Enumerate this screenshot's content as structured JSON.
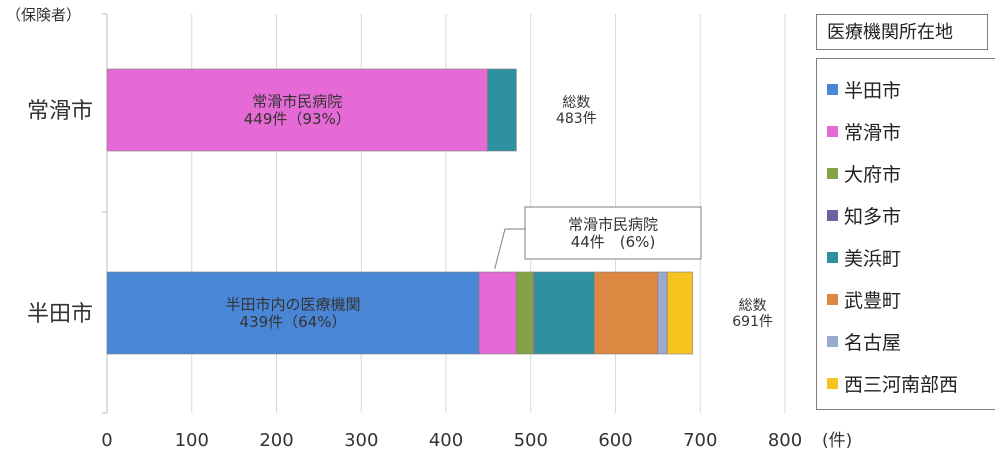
{
  "chart_data": {
    "type": "bar",
    "orientation": "horizontal",
    "stacked": true,
    "y_axis_title": "（保険者）",
    "x_unit": "(件)",
    "xlim": [
      0,
      800
    ],
    "x_ticks": [
      0,
      100,
      200,
      300,
      400,
      500,
      600,
      700,
      800
    ],
    "grid": true,
    "legend_placement": "right",
    "legend_title": "医療機関所在地",
    "categories": [
      "常滑市",
      "半田市"
    ],
    "series": [
      {
        "name": "半田市",
        "color": "#4a86d6",
        "values": [
          0,
          439
        ]
      },
      {
        "name": "常滑市",
        "color": "#e66ad6",
        "values": [
          449,
          44
        ]
      },
      {
        "name": "大府市",
        "color": "#82a445",
        "values": [
          0,
          20
        ]
      },
      {
        "name": "知多市",
        "color": "#7060a0",
        "values": [
          0,
          1
        ]
      },
      {
        "name": "美浜町",
        "color": "#2f91a0",
        "values": [
          34,
          71
        ]
      },
      {
        "name": "武豊町",
        "color": "#dd8842",
        "values": [
          0,
          75
        ]
      },
      {
        "name": "名古屋",
        "color": "#9aa9cf",
        "values": [
          0,
          11
        ]
      },
      {
        "name": "西三河南部西",
        "color": "#f6c31f",
        "values": [
          0,
          30
        ]
      }
    ],
    "bar_labels": [
      {
        "category": "常滑市",
        "lines": [
          "常滑市民病院",
          "449件（93%）"
        ]
      },
      {
        "category": "半田市",
        "lines": [
          "半田市内の医療機関",
          "439件（64%）"
        ]
      }
    ],
    "callout": {
      "category": "半田市",
      "lines": [
        "常滑市民病院",
        "44件　(6%)"
      ]
    },
    "totals": [
      {
        "category": "常滑市",
        "lines": [
          "総数",
          "483件"
        ]
      },
      {
        "category": "半田市",
        "lines": [
          "総数",
          "691件"
        ]
      }
    ]
  }
}
